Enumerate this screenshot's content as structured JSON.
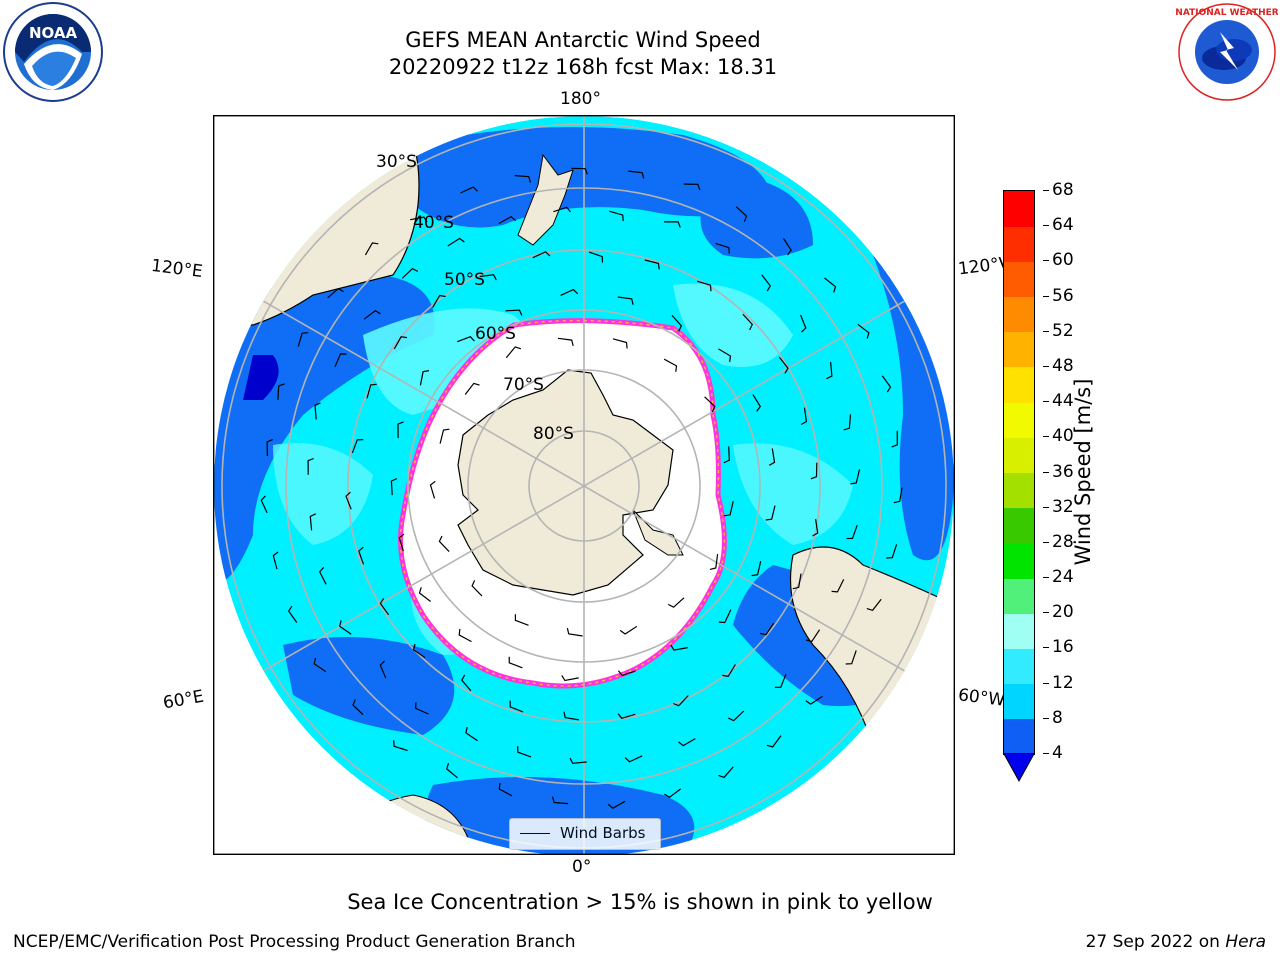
{
  "header": {
    "title_line1": "GEFS MEAN Antarctic Wind Speed",
    "title_line2": "20220922 t12z 168h fcst   Max: 18.31"
  },
  "logos": {
    "left": "NOAA",
    "right": "NATIONAL WEATHER SERVICE"
  },
  "map": {
    "projection": "south-polar-stereographic",
    "lon_labels": {
      "top": "180°",
      "bottom": "0°",
      "left_upper": "120°E",
      "left_lower": "60°E",
      "right_upper": "120°W",
      "right_lower": "60°W"
    },
    "lat_labels": [
      "30°S",
      "40°S",
      "50°S",
      "60°S",
      "70°S",
      "80°S"
    ],
    "legend": {
      "label": "Wind Barbs"
    }
  },
  "colorbar": {
    "label": "Wind Speed [m/s]",
    "ticks": [
      "4",
      "8",
      "12",
      "16",
      "20",
      "24",
      "28",
      "32",
      "36",
      "40",
      "44",
      "48",
      "52",
      "56",
      "60",
      "64",
      "68"
    ],
    "colors": [
      "#0f5ff5",
      "#00d5ff",
      "#32ebff",
      "#9efff2",
      "#50f07a",
      "#00e400",
      "#39c900",
      "#a3e000",
      "#d8f000",
      "#f2fa00",
      "#ffe100",
      "#ffb300",
      "#ff8c00",
      "#ff5b00",
      "#ff2e00",
      "#ff0000"
    ],
    "extend_color": "#0000ee"
  },
  "footer": {
    "note": "Sea Ice Concentration > 15% is shown in pink to yellow",
    "left": "NCEP/EMC/Verification Post Processing Product Generation Branch",
    "right_prefix": "27 Sep 2022 on ",
    "right_italic": "Hera"
  },
  "colors": {
    "land": "#efebd8",
    "ocean_low": "#0f6ef5",
    "ocean_mid": "#00f0ff",
    "ocean_high": "#5cf9ff",
    "ice": "#ffffff",
    "ice_edge": "#ff33dd",
    "ice_edge2": "#ffb43c",
    "grid": "#b4b4b4"
  }
}
